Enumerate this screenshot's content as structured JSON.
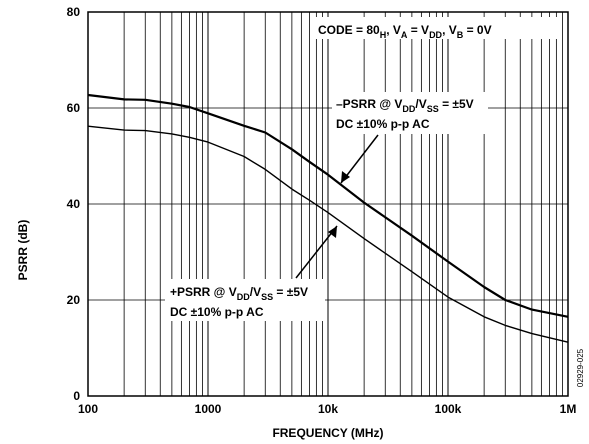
{
  "chart_data": {
    "type": "line",
    "xscale": "log",
    "xlim": [
      100,
      1000000
    ],
    "ylim": [
      0,
      80
    ],
    "grid": true,
    "xlabel": "FREQUENCY (MHz)",
    "ylabel": "PSRR (dB)",
    "x_ticks": [
      100,
      1000,
      10000,
      100000,
      1000000
    ],
    "x_tick_labels": [
      "100",
      "1000",
      "10k",
      "100k",
      "1M"
    ],
    "y_ticks": [
      0,
      20,
      40,
      60,
      80
    ],
    "y_tick_labels": [
      "0",
      "20",
      "40",
      "60",
      "80"
    ],
    "series": [
      {
        "name": "–PSRR",
        "x": [
          100,
          200,
          300,
          500,
          700,
          1000,
          2000,
          3000,
          5000,
          7000,
          10000,
          20000,
          50000,
          100000,
          200000,
          300000,
          500000,
          1000000
        ],
        "y": [
          62.7,
          61.8,
          61.7,
          60.9,
          60.2,
          58.9,
          56.3,
          54.9,
          51.4,
          48.8,
          46.1,
          40.3,
          33.4,
          28.0,
          22.7,
          20.0,
          18.0,
          16.5
        ]
      },
      {
        "name": "+PSRR",
        "x": [
          100,
          200,
          300,
          500,
          700,
          1000,
          2000,
          3000,
          5000,
          7000,
          10000,
          20000,
          50000,
          100000,
          200000,
          300000,
          500000,
          1000000
        ],
        "y": [
          56.2,
          55.4,
          55.3,
          54.6,
          53.9,
          52.9,
          49.9,
          47.2,
          43.1,
          40.8,
          38.2,
          32.8,
          25.9,
          20.6,
          16.5,
          14.7,
          13.0,
          11.2
        ]
      }
    ],
    "annotations": {
      "code": {
        "text": "CODE = 80",
        "sub1": "H",
        "t2": ", V",
        "sub2": "A",
        "t3": " = V",
        "sub3": "DD",
        "t4": ", V",
        "sub4": "B",
        "t5": " = 0V"
      },
      "neg": {
        "l1a": "–PSRR @ V",
        "l1sub1": "DD",
        "l1b": "/V",
        "l1sub2": "SS",
        "l1c": " = ±5V",
        "l2": "DC ±10% p-p AC"
      },
      "pos": {
        "l1a": "+PSRR @ V",
        "l1sub1": "DD",
        "l1b": "/V",
        "l1sub2": "SS",
        "l1c": " = ±5V",
        "l2": "DC ±10% p-p AC"
      }
    },
    "figure_id": "02929-025"
  },
  "style": {
    "line_color": "#000000",
    "grid_color": "#000000"
  }
}
